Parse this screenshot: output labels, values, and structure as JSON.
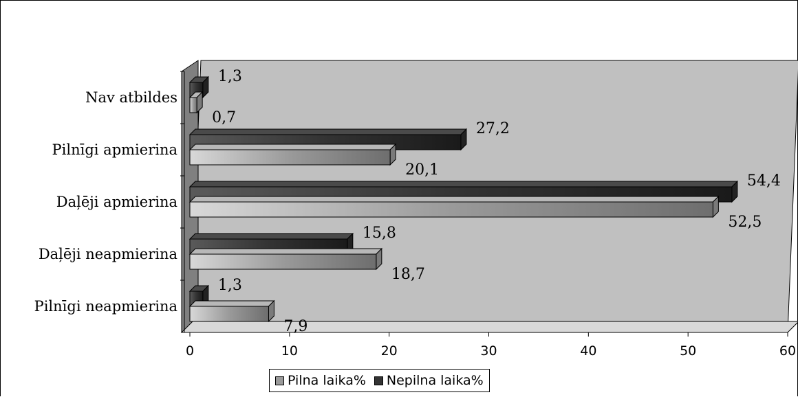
{
  "chart_data": {
    "type": "bar",
    "orientation": "horizontal",
    "style": "3d",
    "categories": [
      "Nav atbildes",
      "Pilnīgi apmierina",
      "Daļēji apmierina",
      "Daļēji neapmierina",
      "Pilnīgi neapmierina"
    ],
    "series": [
      {
        "name": "Pilna laika%",
        "values": [
          0.7,
          20.1,
          52.5,
          18.7,
          7.9
        ],
        "labels": [
          "0,7",
          "20,1",
          "52,5",
          "18,7",
          "7,9"
        ],
        "color": "#8c8c8c"
      },
      {
        "name": "Nepilna laika%",
        "values": [
          1.3,
          27.2,
          54.4,
          15.8,
          1.3
        ],
        "labels": [
          "1,3",
          "27,2",
          "54,4",
          "15,8",
          "1,3"
        ],
        "color": "#3a3a3a"
      }
    ],
    "xlim": [
      0,
      60
    ],
    "xticks": [
      "0",
      "10",
      "20",
      "30",
      "40",
      "50",
      "60"
    ],
    "legend_position": "bottom",
    "wall_color": "#c0c0c0"
  }
}
